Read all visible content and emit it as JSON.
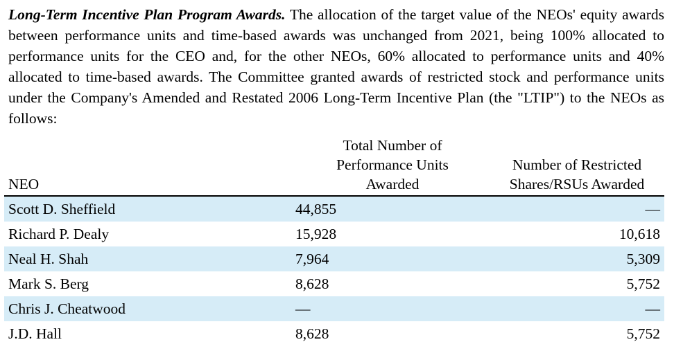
{
  "paragraph": {
    "lead": "Long-Term Incentive Plan Program Awards.",
    "body": " The allocation of the target value of the NEOs' equity awards between performance units and time-based awards was unchanged from 2021, being 100% allocated to performance units for the CEO and, for the other NEOs, 60% allocated to performance units and 40% allocated to time-based awards. The Committee granted awards of restricted stock and performance units under the Company's Amended and Restated 2006 Long-Term Incentive Plan (the \"LTIP\") to the NEOs as follows:"
  },
  "table": {
    "headers": {
      "neo": "NEO",
      "perf_line1": "Total Number of",
      "perf_line2": "Performance Units",
      "perf_line3": "Awarded",
      "rs_line1": "Number of Restricted",
      "rs_line2": "Shares/RSUs Awarded"
    },
    "rows": [
      {
        "neo": "Scott D. Sheffield",
        "perf": "44,855",
        "rs": "—"
      },
      {
        "neo": "Richard P. Dealy",
        "perf": "15,928",
        "rs": "10,618"
      },
      {
        "neo": "Neal H. Shah",
        "perf": "7,964",
        "rs": "5,309"
      },
      {
        "neo": "Mark S. Berg",
        "perf": "8,628",
        "rs": "5,752"
      },
      {
        "neo": "Chris J. Cheatwood",
        "perf": "—",
        "rs": "—"
      },
      {
        "neo": "J.D. Hall",
        "perf": "8,628",
        "rs": "5,752"
      }
    ]
  },
  "colors": {
    "row_shade": "#d6ecf7",
    "text": "#000000"
  }
}
